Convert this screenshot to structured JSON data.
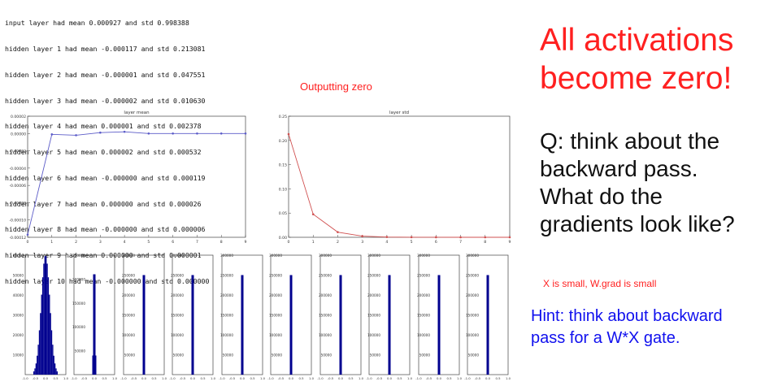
{
  "log_lines": [
    "input layer had mean 0.000927 and std 0.998388",
    "hidden layer 1 had mean -0.000117 and std 0.213081",
    "hidden layer 2 had mean -0.000001 and std 0.047551",
    "hidden layer 3 had mean -0.000002 and std 0.010630",
    "hidden layer 4 had mean 0.000001 and std 0.002378",
    "hidden layer 5 had mean 0.000002 and std 0.000532",
    "hidden layer 6 had mean -0.000000 and std 0.000119",
    "hidden layer 7 had mean 0.000000 and std 0.000026",
    "hidden layer 8 had mean -0.000000 and std 0.000006",
    "hidden layer 9 had mean 0.000000 and std 0.000001",
    "hidden layer 10 had mean -0.000000 and std 0.000000"
  ],
  "annotations": {
    "outputting_zero": "Outputting zero",
    "headline_line1": "All activations",
    "headline_line2": "become zero!",
    "question_line1": "Q: think about the",
    "question_line2": "backward pass.",
    "question_line3": "What do the",
    "question_line4": "gradients look like?",
    "note": "X is small, W.grad is small",
    "hint_line1": "Hint: think about backward",
    "hint_line2": "pass for a W*X gate."
  },
  "colors": {
    "red_text": "#ff2020",
    "blue_text": "#1010ee",
    "mean_line": "#8888dd",
    "std_line": "#dd6666",
    "hist_bar": "#000099"
  },
  "chart_data": [
    {
      "type": "line",
      "title": "layer mean",
      "x": [
        0,
        1,
        2,
        3,
        4,
        5,
        6,
        7,
        8,
        9
      ],
      "values": [
        -0.000117,
        -1e-06,
        -2e-06,
        1e-06,
        2e-06,
        0.0,
        0.0,
        0.0,
        0.0,
        0.0
      ],
      "ylim": [
        -0.00012,
        2e-05
      ],
      "y_ticks": [
        "0.00002",
        "0.00000",
        "-0.00002",
        "-0.00004",
        "-0.00006",
        "-0.00008",
        "-0.00010",
        "-0.00012"
      ],
      "x_ticks": [
        "0",
        "1",
        "2",
        "3",
        "4",
        "5",
        "6",
        "7",
        "8",
        "9"
      ],
      "grid": false
    },
    {
      "type": "line",
      "title": "layer std",
      "x": [
        0,
        1,
        2,
        3,
        4,
        5,
        6,
        7,
        8,
        9
      ],
      "values": [
        0.213081,
        0.047551,
        0.01063,
        0.002378,
        0.000532,
        0.000119,
        2.6e-05,
        6e-06,
        1e-06,
        0.0
      ],
      "ylim": [
        0,
        0.25
      ],
      "y_ticks": [
        "0.25",
        "0.20",
        "0.15",
        "0.10",
        "0.05",
        "0.00"
      ],
      "x_ticks": [
        "0",
        "1",
        "2",
        "3",
        "4",
        "5",
        "6",
        "7",
        "8",
        "9"
      ],
      "grid": false
    },
    {
      "type": "bar",
      "title": "",
      "panels": [
        {
          "y_ticks": [
            "60000",
            "50000",
            "40000",
            "30000",
            "20000",
            "10000"
          ],
          "bars": [
            {
              "x": 0.0,
              "value": 60000
            }
          ]
        },
        {
          "y_ticks": [
            "250000",
            "200000",
            "150000",
            "100000",
            "50000"
          ],
          "bars": [
            {
              "x": 0.0,
              "value": 210000
            },
            {
              "x": 0.0,
              "value": 40000
            }
          ]
        },
        {
          "y_ticks": [
            "300000",
            "250000",
            "200000",
            "150000",
            "100000",
            "50000"
          ],
          "bars": [
            {
              "x": 0.0,
              "value": 250000
            }
          ]
        },
        {
          "y_ticks": [
            "300000",
            "250000",
            "200000",
            "150000",
            "100000",
            "50000"
          ],
          "bars": [
            {
              "x": 0.0,
              "value": 250000
            }
          ]
        },
        {
          "y_ticks": [
            "300000",
            "250000",
            "200000",
            "150000",
            "100000",
            "50000"
          ],
          "bars": [
            {
              "x": 0.0,
              "value": 250000
            }
          ]
        },
        {
          "y_ticks": [
            "300000",
            "250000",
            "200000",
            "150000",
            "100000",
            "50000"
          ],
          "bars": [
            {
              "x": 0.0,
              "value": 250000
            }
          ]
        },
        {
          "y_ticks": [
            "300000",
            "250000",
            "200000",
            "150000",
            "100000",
            "50000"
          ],
          "bars": [
            {
              "x": 0.0,
              "value": 250000
            }
          ]
        },
        {
          "y_ticks": [
            "300000",
            "250000",
            "200000",
            "150000",
            "100000",
            "50000"
          ],
          "bars": [
            {
              "x": 0.0,
              "value": 250000
            }
          ]
        },
        {
          "y_ticks": [
            "300000",
            "250000",
            "200000",
            "150000",
            "100000",
            "50000"
          ],
          "bars": [
            {
              "x": 0.0,
              "value": 250000
            }
          ]
        },
        {
          "y_ticks": [
            "300000",
            "250000",
            "200000",
            "150000",
            "100000",
            "50000"
          ],
          "bars": [
            {
              "x": 0.0,
              "value": 250000
            }
          ]
        }
      ],
      "x_ticks": [
        "-1.0",
        "-0.5",
        "0.0",
        "0.5",
        "1.0"
      ],
      "first_panel_gaussian_std": 0.213081
    }
  ]
}
